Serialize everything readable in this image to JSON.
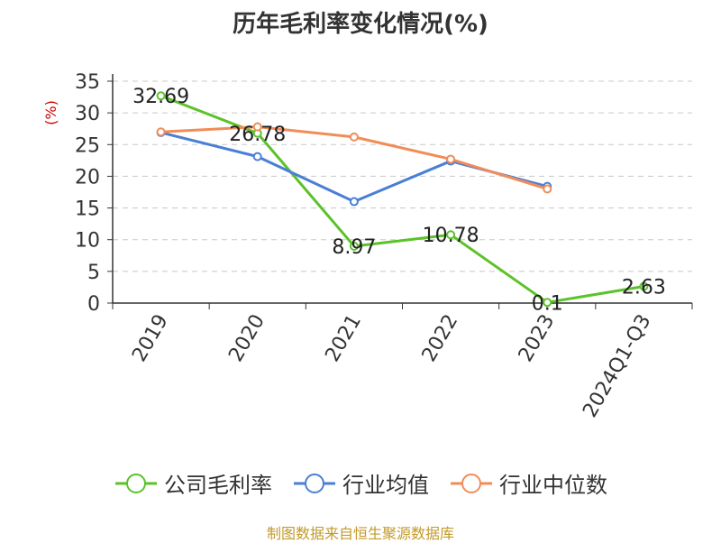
{
  "chart_data": {
    "type": "line",
    "title": "历年毛利率变化情况(%)",
    "ylabel": "(%)",
    "xlabel": "",
    "categories": [
      "2019",
      "2020",
      "2021",
      "2022",
      "2023",
      "2024Q1-Q3"
    ],
    "ylim": [
      0,
      35
    ],
    "yticks": [
      0,
      5,
      10,
      15,
      20,
      25,
      30,
      35
    ],
    "grid": true,
    "legend_position": "bottom",
    "series": [
      {
        "name": "公司毛利率",
        "color": "#5cc22a",
        "values": [
          32.69,
          26.78,
          8.97,
          10.78,
          0.1,
          2.63
        ],
        "labels": [
          "32.69",
          "26.78",
          "8.97",
          "10.78",
          "0.1",
          "2.63"
        ]
      },
      {
        "name": "行业均值",
        "color": "#4a7fd6",
        "values": [
          26.9,
          23.1,
          16.0,
          22.4,
          18.4,
          null
        ]
      },
      {
        "name": "行业中位数",
        "color": "#f28c57",
        "values": [
          27.0,
          27.8,
          26.2,
          22.7,
          18.0,
          null
        ]
      }
    ]
  },
  "source_text": "制图数据来自恒生聚源数据库"
}
